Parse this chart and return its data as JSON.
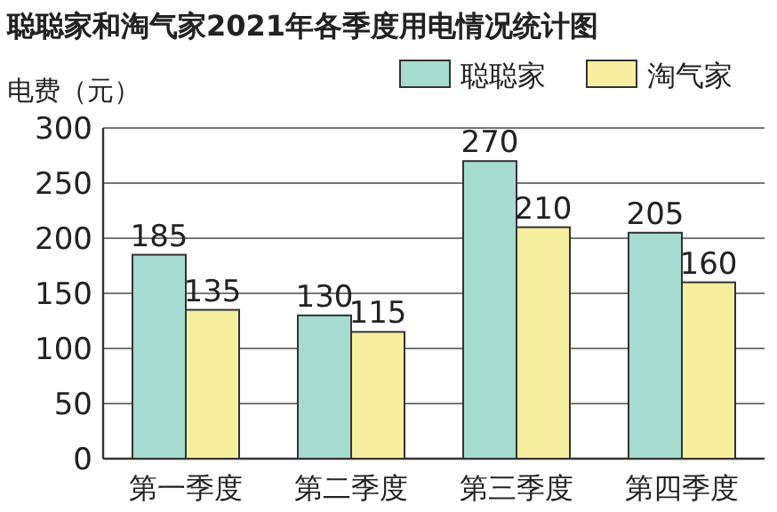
{
  "chart_data": {
    "type": "bar",
    "title": "聪聪家和淘气家2021年各季度用电情况统计图",
    "ylabel": "电费（元）",
    "categories": [
      "第一季度",
      "第二季度",
      "第三季度",
      "第四季度"
    ],
    "series": [
      {
        "name": "聪聪家",
        "color": "#a6dccf",
        "values": [
          185,
          130,
          270,
          205
        ]
      },
      {
        "name": "淘气家",
        "color": "#f6efa0",
        "values": [
          135,
          115,
          210,
          160
        ]
      }
    ],
    "ylim": [
      0,
      300
    ],
    "yticks": [
      0,
      50,
      100,
      150,
      200,
      250,
      300
    ],
    "grid": "y",
    "legend": "top right",
    "data_labels": true
  }
}
